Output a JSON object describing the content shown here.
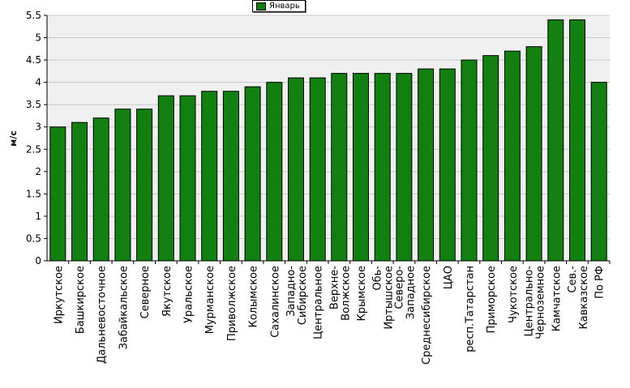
{
  "chart_data": {
    "type": "bar",
    "ylabel": "м/с",
    "ylim": [
      0,
      5.5
    ],
    "yticks": [
      "0",
      "0.5",
      "1",
      "1.5",
      "2",
      "2.5",
      "3",
      "3.5",
      "4",
      "4.5",
      "5",
      "5.5"
    ],
    "grid": true,
    "legend_position": "top-center",
    "bar_color": "#118011",
    "series": [
      {
        "name": "Январь",
        "values": [
          3.0,
          3.1,
          3.2,
          3.4,
          3.4,
          3.7,
          3.7,
          3.8,
          3.8,
          3.9,
          4.0,
          4.1,
          4.1,
          4.2,
          4.2,
          4.2,
          4.2,
          4.3,
          4.3,
          4.5,
          4.6,
          4.7,
          4.8,
          5.4,
          5.4,
          4.0
        ]
      }
    ],
    "categories": [
      "Иркутское",
      "Башкирское",
      "Дальневосточное",
      "Забайкальское",
      "Северное",
      "Якутское",
      "Уральское",
      "Мурманское",
      "Приволжское",
      "Колымское",
      "Сахалинское",
      "Западно-\nСибирское",
      "Центральное",
      "Верхне-\nВолжское",
      "Крымское",
      "Обь-\nИртышское",
      "Северо-\nЗападное",
      "Среднесибирское",
      "ЦАО",
      "респ.Татарстан",
      "Приморское",
      "Чукотское",
      "Центрально-\nЧерноземное",
      "Камчатское",
      "Сев.-\nКавказское",
      "По РФ"
    ]
  }
}
